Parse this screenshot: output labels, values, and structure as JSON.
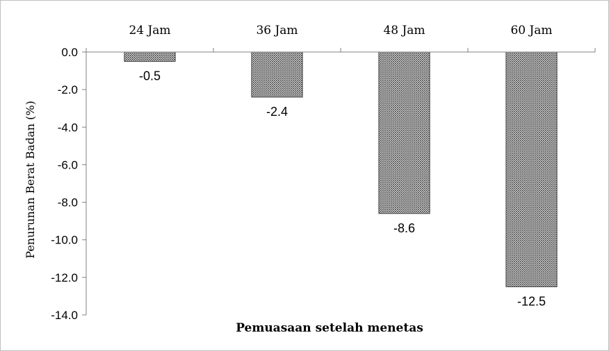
{
  "chart_data": {
    "type": "bar",
    "categories": [
      "24 Jam",
      "36 Jam",
      "48 Jam",
      "60 Jam"
    ],
    "values": [
      -0.5,
      -2.4,
      -8.6,
      -12.5
    ],
    "data_labels": [
      "-0.5",
      "-2.4",
      "-8.6",
      "-12.5"
    ],
    "title": "",
    "xlabel": "Pemuasaan setelah menetas",
    "ylabel": "Penurunan Berat Badan (%)",
    "ylim": [
      -14,
      0
    ],
    "yticks": [
      0,
      -2,
      -4,
      -6,
      -8,
      -10,
      -12,
      -14
    ],
    "ytick_labels": [
      "0.0",
      "-2.0",
      "-4.0",
      "-6.0",
      "-8.0",
      "-10.0",
      "-12.0",
      "-14.0"
    ],
    "category_axis_position": "top",
    "grid": false,
    "legend": "none",
    "bar_fill": "#7f7f7f",
    "bar_pattern": "dotted-texture",
    "bar_stroke": "#404040",
    "axis_color": "#808080"
  }
}
